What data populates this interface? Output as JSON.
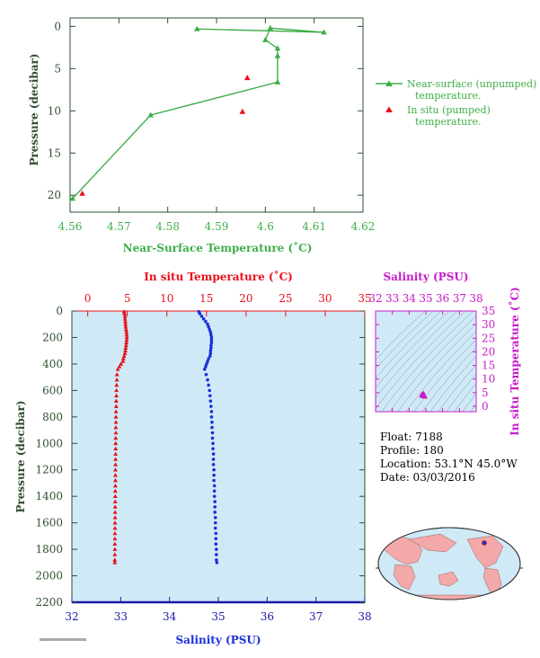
{
  "colors": {
    "green": "#3fae49",
    "dark": "#2f4f2f",
    "red": "#e8101a",
    "blue": "#1a2fd8",
    "magenta": "#c81bc8",
    "navy": "#1a1aa8",
    "panel_bg": "#cfeaf6",
    "darkred": "#b01010"
  },
  "float_info": {
    "float": "Float:  7188",
    "profile": "Profile:  180",
    "location": "Location:  53.1°N  45.0°W",
    "date": "Date:  03/03/2016"
  },
  "chart_data": [
    {
      "type": "line",
      "title": "",
      "xlabel": "Near-Surface Temperature (˚C)",
      "ylabel": "Pressure (decibar)",
      "xlim": [
        4.56,
        4.62
      ],
      "ylim": [
        22,
        -1
      ],
      "xticks": [
        "4.56",
        "4.57",
        "4.58",
        "4.59",
        "4.6",
        "4.61",
        "4.62"
      ],
      "yticks": [
        "0",
        "5",
        "10",
        "15",
        "20"
      ],
      "legend_position": "right",
      "series": [
        {
          "name": "Near-surface (unpumped) temperature.",
          "marker": "triangle",
          "line": true,
          "x": [
            4.586,
            4.612,
            4.601,
            4.6,
            4.6025,
            4.6025,
            4.6025,
            4.5765,
            4.5605
          ],
          "y": [
            0.3,
            0.7,
            0.2,
            1.6,
            2.6,
            3.5,
            6.6,
            10.5,
            20.4
          ]
        },
        {
          "name": "In situ (pumped) temperature.",
          "marker": "triangle",
          "line": false,
          "x": [
            4.5963,
            4.5953,
            4.5625
          ],
          "y": [
            6.1,
            10.1,
            19.8
          ]
        }
      ]
    },
    {
      "type": "scatter",
      "title": "",
      "xlabel_bottom": "Salinity (PSU)",
      "xlabel_top": "In situ Temperature (˚C)",
      "ylabel": "Pressure (decibar)",
      "xlim_bottom": [
        32,
        38
      ],
      "xlim_top": [
        -2,
        35
      ],
      "ylim": [
        2200,
        0
      ],
      "xticks_bottom": [
        "32",
        "33",
        "34",
        "35",
        "36",
        "37",
        "38"
      ],
      "xticks_top": [
        "0",
        "5",
        "10",
        "15",
        "20",
        "25",
        "30",
        "35"
      ],
      "yticks": [
        "0",
        "200",
        "400",
        "600",
        "800",
        "1000",
        "1200",
        "1400",
        "1600",
        "1800",
        "2000",
        "2200"
      ],
      "series": [
        {
          "name": "In situ Temperature (˚C)",
          "axis": "top",
          "marker": "triangle",
          "points": [
            [
              4.6,
              5
            ],
            [
              4.65,
              20
            ],
            [
              4.7,
              40
            ],
            [
              4.72,
              60
            ],
            [
              4.75,
              80
            ],
            [
              4.78,
              100
            ],
            [
              4.8,
              120
            ],
            [
              4.85,
              140
            ],
            [
              4.9,
              160
            ],
            [
              4.92,
              180
            ],
            [
              4.95,
              200
            ],
            [
              4.92,
              220
            ],
            [
              4.88,
              240
            ],
            [
              4.85,
              260
            ],
            [
              4.8,
              280
            ],
            [
              4.75,
              300
            ],
            [
              4.7,
              320
            ],
            [
              4.6,
              340
            ],
            [
              4.5,
              360
            ],
            [
              4.45,
              380
            ],
            [
              4.2,
              400
            ],
            [
              4.0,
              420
            ],
            [
              3.8,
              440
            ],
            [
              3.7,
              480
            ],
            [
              3.68,
              520
            ],
            [
              3.65,
              560
            ],
            [
              3.63,
              600
            ],
            [
              3.62,
              640
            ],
            [
              3.6,
              680
            ],
            [
              3.6,
              720
            ],
            [
              3.58,
              760
            ],
            [
              3.57,
              800
            ],
            [
              3.56,
              840
            ],
            [
              3.55,
              880
            ],
            [
              3.55,
              920
            ],
            [
              3.54,
              960
            ],
            [
              3.53,
              1000
            ],
            [
              3.53,
              1040
            ],
            [
              3.52,
              1080
            ],
            [
              3.52,
              1120
            ],
            [
              3.51,
              1160
            ],
            [
              3.5,
              1200
            ],
            [
              3.5,
              1240
            ],
            [
              3.5,
              1280
            ],
            [
              3.49,
              1320
            ],
            [
              3.48,
              1360
            ],
            [
              3.48,
              1400
            ],
            [
              3.47,
              1440
            ],
            [
              3.47,
              1480
            ],
            [
              3.46,
              1520
            ],
            [
              3.46,
              1560
            ],
            [
              3.45,
              1600
            ],
            [
              3.45,
              1640
            ],
            [
              3.44,
              1680
            ],
            [
              3.44,
              1720
            ],
            [
              3.43,
              1760
            ],
            [
              3.43,
              1800
            ],
            [
              3.42,
              1840
            ],
            [
              3.42,
              1880
            ],
            [
              3.42,
              1900
            ]
          ]
        },
        {
          "name": "Salinity (PSU)",
          "axis": "bottom",
          "marker": "circle",
          "points": [
            [
              34.6,
              5
            ],
            [
              34.62,
              20
            ],
            [
              34.66,
              40
            ],
            [
              34.7,
              60
            ],
            [
              34.74,
              80
            ],
            [
              34.78,
              100
            ],
            [
              34.8,
              120
            ],
            [
              34.82,
              140
            ],
            [
              34.84,
              160
            ],
            [
              34.85,
              180
            ],
            [
              34.86,
              200
            ],
            [
              34.86,
              220
            ],
            [
              34.86,
              240
            ],
            [
              34.85,
              260
            ],
            [
              34.85,
              280
            ],
            [
              34.84,
              300
            ],
            [
              34.84,
              320
            ],
            [
              34.83,
              340
            ],
            [
              34.8,
              360
            ],
            [
              34.78,
              380
            ],
            [
              34.76,
              400
            ],
            [
              34.74,
              420
            ],
            [
              34.72,
              440
            ],
            [
              34.75,
              480
            ],
            [
              34.78,
              520
            ],
            [
              34.8,
              560
            ],
            [
              34.82,
              600
            ],
            [
              34.83,
              640
            ],
            [
              34.84,
              680
            ],
            [
              34.85,
              720
            ],
            [
              34.86,
              760
            ],
            [
              34.86,
              800
            ],
            [
              34.87,
              840
            ],
            [
              34.87,
              880
            ],
            [
              34.88,
              920
            ],
            [
              34.88,
              960
            ],
            [
              34.89,
              1000
            ],
            [
              34.89,
              1040
            ],
            [
              34.9,
              1080
            ],
            [
              34.9,
              1120
            ],
            [
              34.9,
              1160
            ],
            [
              34.91,
              1200
            ],
            [
              34.91,
              1240
            ],
            [
              34.91,
              1280
            ],
            [
              34.92,
              1320
            ],
            [
              34.92,
              1360
            ],
            [
              34.92,
              1400
            ],
            [
              34.93,
              1440
            ],
            [
              34.93,
              1480
            ],
            [
              34.93,
              1520
            ],
            [
              34.94,
              1560
            ],
            [
              34.94,
              1600
            ],
            [
              34.94,
              1640
            ],
            [
              34.95,
              1680
            ],
            [
              34.95,
              1720
            ],
            [
              34.95,
              1760
            ],
            [
              34.96,
              1800
            ],
            [
              34.96,
              1840
            ],
            [
              34.96,
              1880
            ],
            [
              34.97,
              1900
            ]
          ]
        }
      ]
    },
    {
      "type": "scatter",
      "title": "",
      "xlabel": "Salinity (PSU)",
      "ylabel": "In situ Temperature (˚C)",
      "xlim": [
        32,
        38
      ],
      "ylim": [
        -2,
        35
      ],
      "xticks": [
        "32",
        "33",
        "34",
        "35",
        "36",
        "37",
        "38"
      ],
      "yticks": [
        "0",
        "5",
        "10",
        "15",
        "20",
        "25",
        "30",
        "35"
      ],
      "points": [
        [
          34.86,
          4.9
        ],
        [
          34.84,
          4.7
        ],
        [
          34.8,
          4.5
        ],
        [
          34.76,
          4.2
        ],
        [
          34.72,
          3.8
        ],
        [
          34.8,
          3.65
        ],
        [
          34.86,
          3.57
        ],
        [
          34.9,
          3.52
        ],
        [
          34.93,
          3.47
        ],
        [
          34.96,
          3.43
        ],
        [
          34.97,
          3.42
        ],
        [
          34.75,
          4.4
        ],
        [
          34.82,
          4.6
        ],
        [
          34.88,
          4.1
        ],
        [
          34.92,
          3.9
        ]
      ]
    }
  ]
}
